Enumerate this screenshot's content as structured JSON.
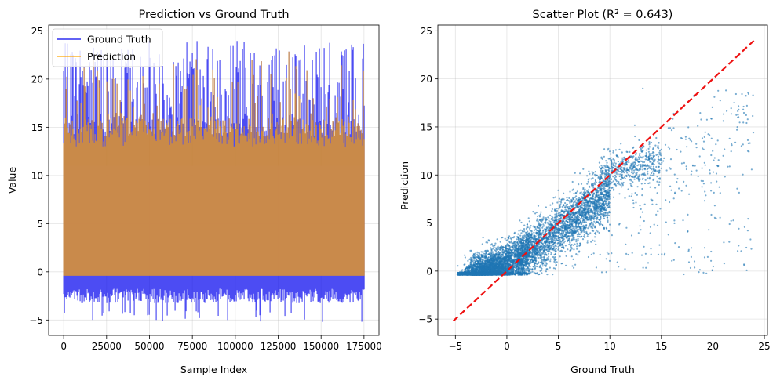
{
  "chart_data": [
    {
      "type": "line",
      "title": "Prediction vs Ground Truth",
      "xlabel": "Sample Index",
      "ylabel": "Value",
      "xlim": [
        -8750,
        183750
      ],
      "ylim": [
        -6.6,
        25.6
      ],
      "xticks": [
        0,
        25000,
        50000,
        75000,
        100000,
        125000,
        150000,
        175000
      ],
      "xtick_labels": [
        "0",
        "25000",
        "50000",
        "75000",
        "100000",
        "125000",
        "150000",
        "175000"
      ],
      "yticks": [
        -5,
        0,
        5,
        10,
        15,
        20,
        25
      ],
      "ytick_labels": [
        "−5",
        "0",
        "5",
        "10",
        "15",
        "20",
        "25"
      ],
      "grid": true,
      "legend_position": "top-left",
      "series": [
        {
          "name": "Ground Truth",
          "color": "#0000ee",
          "alpha": 0.7,
          "n_points": 175000,
          "typical_min": -2.5,
          "min": -5.2,
          "max": 24.0,
          "dense_upper_band": 11.5,
          "baseline": -0.4
        },
        {
          "name": "Prediction",
          "color": "#ffa500",
          "alpha": 0.7,
          "n_points": 175000,
          "min": -0.4,
          "max": 23.0,
          "dense_upper_band": 11.0
        }
      ]
    },
    {
      "type": "scatter",
      "title": "Scatter Plot (R² = 0.643)",
      "xlabel": "Ground Truth",
      "ylabel": "Prediction",
      "xlim": [
        -6.7,
        25.3
      ],
      "ylim": [
        -6.7,
        25.6
      ],
      "xticks": [
        -5,
        0,
        5,
        10,
        15,
        20,
        25
      ],
      "xtick_labels": [
        "−5",
        "0",
        "5",
        "10",
        "15",
        "20",
        "25"
      ],
      "yticks": [
        -5,
        0,
        5,
        10,
        15,
        20,
        25
      ],
      "ytick_labels": [
        "−5",
        "0",
        "5",
        "10",
        "15",
        "20",
        "25"
      ],
      "grid": true,
      "point_color": "#1f77b4",
      "point_alpha": 0.6,
      "r_squared": 0.643,
      "prediction_floor": -0.4,
      "reference_line": {
        "x": [
          -5.2,
          24.0
        ],
        "y": [
          -5.2,
          24.0
        ],
        "color": "#ee1111",
        "style": "dashed"
      }
    }
  ]
}
